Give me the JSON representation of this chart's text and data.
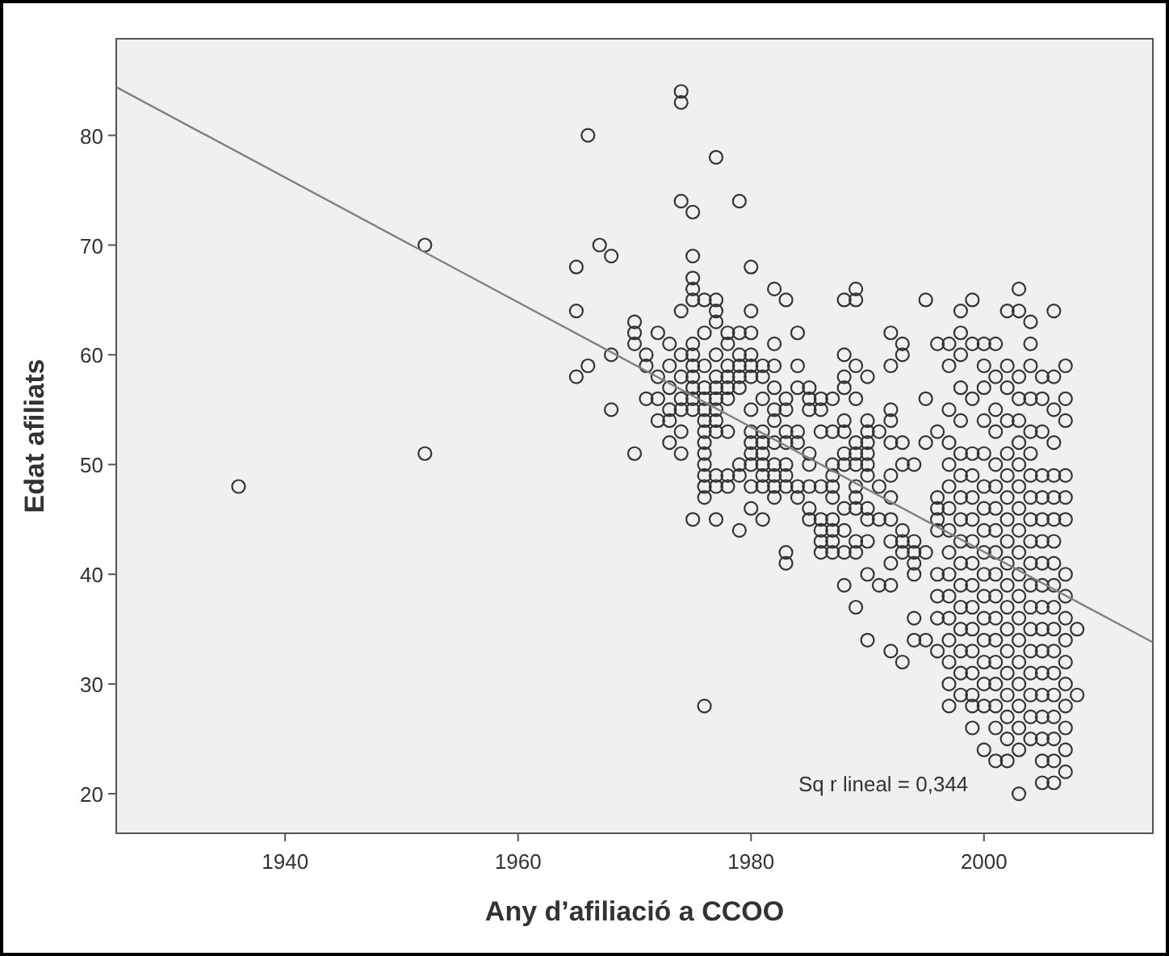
{
  "chart_data": {
    "type": "scatter",
    "xlabel": "Any d’afiliació a CCOO",
    "ylabel": "Edat afiliats",
    "xlim": [
      1925.5,
      2014.5
    ],
    "ylim": [
      16.4,
      88.8
    ],
    "xticks": [
      1940,
      1960,
      1980,
      2000
    ],
    "yticks": [
      20,
      30,
      40,
      50,
      60,
      70,
      80
    ],
    "grid": false,
    "annotations": [
      "Sq r lineal = 0,344"
    ],
    "series": [
      {
        "marker": "circle",
        "color": "#333333",
        "x": [
          1936,
          1952,
          1952,
          1965,
          1965,
          1965,
          1966,
          1966,
          1967,
          1968,
          1968,
          1968,
          1970,
          1970,
          1970,
          1970,
          1974,
          1974,
          1974,
          1975,
          1975,
          1977,
          1979,
          1976,
          1975,
          1977,
          1979,
          1983,
          1983,
          1980,
          1982,
          1983,
          1988,
          1989,
          1989,
          1995,
          1998,
          1999,
          2002,
          2003,
          2003,
          2006,
          1989,
          1990,
          1992,
          1993,
          1988,
          2003,
          2000,
          2001,
          1999,
          2008,
          2008,
          1971,
          1971,
          1971,
          1972,
          1972,
          1972,
          1972,
          1973,
          1973,
          1973,
          1973,
          1973,
          1973,
          1974,
          1974,
          1974,
          1974,
          1974,
          1974,
          1974,
          1975,
          1975,
          1975,
          1975,
          1975,
          1975,
          1975,
          1975,
          1975,
          1975,
          1976,
          1976,
          1976,
          1976,
          1976,
          1976,
          1976,
          1976,
          1976,
          1976,
          1976,
          1976,
          1976,
          1976,
          1977,
          1977,
          1977,
          1977,
          1977,
          1977,
          1977,
          1977,
          1977,
          1977,
          1977,
          1977,
          1978,
          1978,
          1978,
          1978,
          1978,
          1978,
          1978,
          1978,
          1978,
          1979,
          1979,
          1979,
          1979,
          1979,
          1979,
          1979,
          1980,
          1980,
          1980,
          1980,
          1980,
          1980,
          1980,
          1980,
          1980,
          1980,
          1980,
          1980,
          1981,
          1981,
          1981,
          1981,
          1981,
          1981,
          1981,
          1981,
          1981,
          1981,
          1982,
          1982,
          1982,
          1982,
          1982,
          1982,
          1982,
          1982,
          1982,
          1982,
          1983,
          1983,
          1983,
          1983,
          1983,
          1983,
          1983,
          1984,
          1984,
          1984,
          1984,
          1984,
          1984,
          1984,
          1985,
          1985,
          1985,
          1985,
          1985,
          1985,
          1985,
          1985,
          1986,
          1986,
          1986,
          1986,
          1986,
          1986,
          1986,
          1986,
          1987,
          1987,
          1987,
          1987,
          1987,
          1987,
          1987,
          1987,
          1987,
          1987,
          1988,
          1988,
          1988,
          1988,
          1988,
          1988,
          1988,
          1988,
          1988,
          1988,
          1989,
          1989,
          1989,
          1989,
          1989,
          1989,
          1989,
          1989,
          1989,
          1989,
          1990,
          1990,
          1990,
          1990,
          1990,
          1990,
          1990,
          1990,
          1990,
          1990,
          1990,
          1991,
          1991,
          1991,
          1991,
          1992,
          1992,
          1992,
          1992,
          1992,
          1992,
          1992,
          1992,
          1992,
          1992,
          1992,
          1993,
          1993,
          1993,
          1993,
          1993,
          1993,
          1993,
          1994,
          1994,
          1994,
          1994,
          1994,
          1994,
          1994,
          1995,
          1995,
          1995,
          1995,
          1996,
          1996,
          1996,
          1996,
          1996,
          1996,
          1996,
          1996,
          1996,
          1996,
          1997,
          1997,
          1997,
          1997,
          1997,
          1997,
          1997,
          1997,
          1997,
          1997,
          1997,
          1997,
          1997,
          1997,
          1997,
          1997,
          1998,
          1998,
          1998,
          1998,
          1998,
          1998,
          1998,
          1998,
          1998,
          1998,
          1998,
          1998,
          1998,
          1998,
          1998,
          1998,
          1999,
          1999,
          1999,
          1999,
          1999,
          1999,
          1999,
          1999,
          1999,
          1999,
          1999,
          1999,
          1999,
          1999,
          1999,
          2000,
          2000,
          2000,
          2000,
          2000,
          2000,
          2000,
          2000,
          2000,
          2000,
          2000,
          2000,
          2000,
          2000,
          2000,
          2000,
          2001,
          2001,
          2001,
          2001,
          2001,
          2001,
          2001,
          2001,
          2001,
          2001,
          2001,
          2001,
          2001,
          2001,
          2001,
          2001,
          2001,
          2002,
          2002,
          2002,
          2002,
          2002,
          2002,
          2002,
          2002,
          2002,
          2002,
          2002,
          2002,
          2002,
          2002,
          2002,
          2002,
          2002,
          2002,
          2003,
          2003,
          2003,
          2003,
          2003,
          2003,
          2003,
          2003,
          2003,
          2003,
          2003,
          2003,
          2003,
          2003,
          2003,
          2003,
          2003,
          2003,
          2004,
          2004,
          2004,
          2004,
          2004,
          2004,
          2004,
          2004,
          2004,
          2004,
          2004,
          2004,
          2004,
          2004,
          2004,
          2004,
          2004,
          2004,
          2004,
          2005,
          2005,
          2005,
          2005,
          2005,
          2005,
          2005,
          2005,
          2005,
          2005,
          2005,
          2005,
          2005,
          2005,
          2005,
          2005,
          2005,
          2005,
          2006,
          2006,
          2006,
          2006,
          2006,
          2006,
          2006,
          2006,
          2006,
          2006,
          2006,
          2006,
          2006,
          2006,
          2006,
          2006,
          2006,
          2006,
          2007,
          2007,
          2007,
          2007,
          2007,
          2007,
          2007,
          2007,
          2007,
          2007,
          2007,
          2007,
          2007,
          2007,
          2007,
          2007
        ],
        "values": [
          48,
          70,
          51,
          68,
          64,
          58,
          59,
          80,
          70,
          69,
          60,
          55,
          51,
          63,
          62,
          61,
          84,
          83,
          74,
          73,
          69,
          78,
          74,
          28,
          45,
          45,
          44,
          42,
          41,
          68,
          66,
          65,
          65,
          66,
          65,
          65,
          64,
          65,
          64,
          66,
          64,
          64,
          37,
          34,
          33,
          32,
          39,
          20,
          24,
          23,
          26,
          35,
          29,
          59,
          60,
          56,
          62,
          58,
          56,
          54,
          61,
          59,
          57,
          55,
          54,
          52,
          64,
          60,
          58,
          56,
          55,
          53,
          51,
          67,
          66,
          65,
          61,
          60,
          59,
          58,
          57,
          56,
          55,
          65,
          62,
          59,
          57,
          56,
          55,
          54,
          53,
          52,
          51,
          50,
          49,
          48,
          47,
          65,
          64,
          63,
          60,
          58,
          57,
          56,
          55,
          54,
          53,
          49,
          48,
          62,
          61,
          59,
          58,
          57,
          56,
          53,
          49,
          48,
          62,
          60,
          59,
          58,
          57,
          50,
          49,
          64,
          62,
          60,
          59,
          58,
          55,
          53,
          52,
          51,
          50,
          48,
          46,
          59,
          58,
          56,
          53,
          52,
          51,
          50,
          49,
          48,
          45,
          61,
          59,
          57,
          55,
          54,
          52,
          50,
          49,
          48,
          47,
          56,
          55,
          53,
          52,
          50,
          49,
          48,
          62,
          59,
          57,
          53,
          52,
          48,
          47,
          57,
          56,
          55,
          51,
          50,
          48,
          46,
          45,
          56,
          55,
          53,
          48,
          45,
          44,
          43,
          42,
          56,
          53,
          50,
          49,
          48,
          47,
          45,
          44,
          43,
          42,
          60,
          58,
          57,
          54,
          53,
          51,
          50,
          46,
          44,
          42,
          59,
          56,
          52,
          51,
          50,
          48,
          47,
          46,
          43,
          42,
          58,
          54,
          53,
          52,
          51,
          50,
          49,
          46,
          45,
          43,
          40,
          53,
          48,
          45,
          39,
          62,
          59,
          55,
          54,
          52,
          49,
          47,
          45,
          43,
          41,
          39,
          61,
          60,
          52,
          50,
          44,
          43,
          42,
          50,
          43,
          42,
          41,
          40,
          36,
          34,
          56,
          52,
          42,
          34,
          61,
          53,
          47,
          46,
          45,
          44,
          40,
          38,
          36,
          33,
          61,
          59,
          55,
          52,
          50,
          48,
          46,
          44,
          42,
          40,
          38,
          36,
          34,
          32,
          30,
          28,
          62,
          60,
          57,
          54,
          51,
          49,
          47,
          45,
          43,
          41,
          39,
          37,
          35,
          33,
          31,
          29,
          61,
          56,
          51,
          49,
          47,
          45,
          43,
          41,
          39,
          37,
          35,
          33,
          31,
          29,
          28,
          61,
          59,
          57,
          54,
          51,
          48,
          46,
          44,
          42,
          40,
          38,
          36,
          34,
          32,
          30,
          28,
          61,
          58,
          55,
          53,
          50,
          48,
          46,
          44,
          42,
          40,
          38,
          36,
          34,
          32,
          30,
          28,
          26,
          59,
          57,
          54,
          51,
          49,
          47,
          45,
          43,
          41,
          39,
          37,
          35,
          33,
          31,
          29,
          27,
          25,
          23,
          58,
          56,
          54,
          52,
          50,
          48,
          46,
          44,
          42,
          40,
          38,
          36,
          34,
          32,
          30,
          28,
          26,
          24,
          63,
          61,
          59,
          56,
          53,
          51,
          49,
          47,
          45,
          43,
          41,
          39,
          37,
          35,
          33,
          31,
          29,
          27,
          25,
          58,
          56,
          53,
          49,
          47,
          45,
          43,
          41,
          39,
          37,
          35,
          33,
          31,
          29,
          27,
          25,
          23,
          21,
          58,
          55,
          52,
          49,
          47,
          45,
          43,
          41,
          39,
          37,
          35,
          33,
          31,
          29,
          27,
          25,
          23,
          21,
          59,
          56,
          54,
          49,
          47,
          45,
          40,
          38,
          36,
          34,
          32,
          30,
          28,
          26,
          24,
          22
        ]
      },
      {
        "type": "line",
        "color": "#808080",
        "x": [
          1925.5,
          2014.5
        ],
        "values": [
          84.4,
          33.8
        ]
      }
    ]
  }
}
